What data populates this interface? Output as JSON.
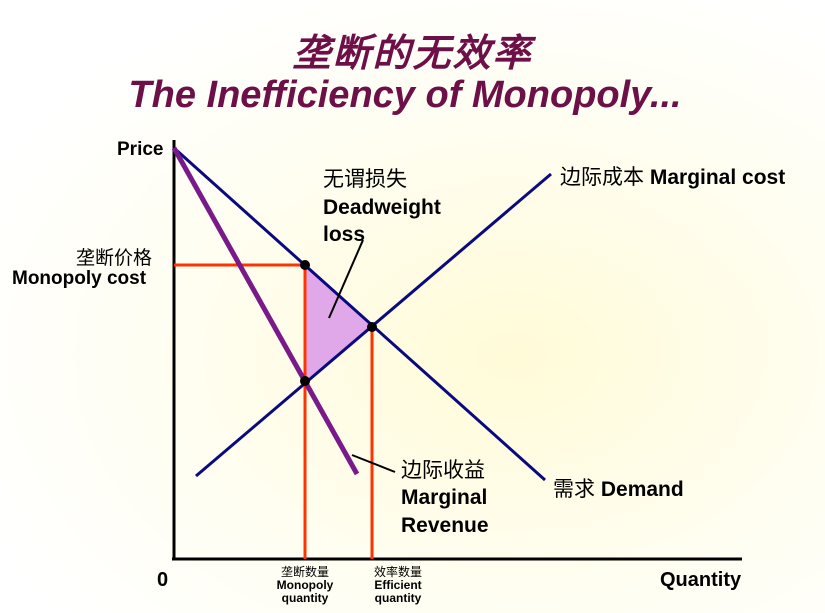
{
  "title": {
    "chinese": "垄断的无效率",
    "english": "The Inefficiency of Monopoly..."
  },
  "axes": {
    "y_label": "Price",
    "x_label": "Quantity",
    "origin": "0"
  },
  "labels": {
    "marginal_cost_cn": "边际成本",
    "marginal_cost_en": "Marginal cost",
    "demand_cn": "需求",
    "demand_en": "Demand",
    "marginal_revenue_cn": "边际收益",
    "marginal_revenue_en_1": "Marginal",
    "marginal_revenue_en_2": "Revenue",
    "deadweight_cn": "无谓损失",
    "deadweight_en_1": "Deadweight",
    "deadweight_en_2": "loss",
    "monopoly_price_cn": "垄断价格",
    "monopoly_price_en": "Monopoly cost",
    "monopoly_qty_cn": "垄断数量",
    "monopoly_qty_en_1": "Monopoly",
    "monopoly_qty_en_2": "quantity",
    "efficient_qty_cn": "效率数量",
    "efficient_qty_en_1": "Efficient",
    "efficient_qty_en_2": "quantity"
  },
  "colors": {
    "title": "#6e1048",
    "demand_mc_lines": "#0a0a80",
    "marginal_revenue_line": "#7a1a8a",
    "guide_lines": "#ff3300",
    "deadweight_fill": "#e0a8e8",
    "axes": "#000000"
  }
}
